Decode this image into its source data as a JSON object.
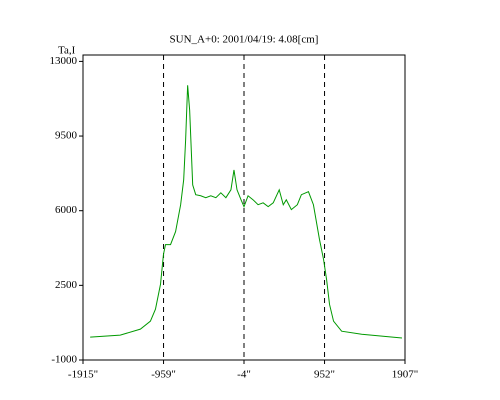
{
  "chart_data": {
    "type": "line",
    "title": "SUN_A+0: 2001/04/19: 4.08[cm]",
    "y_label": "Ta,I",
    "xlim": [
      -1915,
      1907
    ],
    "xticks": [
      {
        "value": -1915,
        "label": "-1915\""
      },
      {
        "value": -959,
        "label": "-959\""
      },
      {
        "value": -4,
        "label": "-4\""
      },
      {
        "value": 952,
        "label": "952\""
      },
      {
        "value": 1907,
        "label": "1907\""
      }
    ],
    "ylim": [
      -1000,
      13300
    ],
    "yticks": [
      13000,
      9500,
      6000,
      2500,
      -1000
    ],
    "dashed_x": true,
    "series": [
      {
        "color": "#009900",
        "x": [
          -1830,
          -1473,
          -1234,
          -1115,
          -1055,
          -995,
          -960,
          -936,
          -876,
          -816,
          -756,
          -720,
          -697,
          -673,
          -649,
          -613,
          -577,
          -518,
          -458,
          -398,
          -338,
          -279,
          -219,
          -159,
          -123,
          -87,
          -39,
          -4,
          44,
          104,
          163,
          223,
          283,
          343,
          414,
          462,
          498,
          558,
          629,
          677,
          761,
          820,
          892,
          940,
          976,
          1011,
          1059,
          1155,
          1393,
          1632,
          1871
        ],
        "values": [
          73,
          167,
          446,
          820,
          1380,
          2550,
          3950,
          4410,
          4410,
          5020,
          6280,
          7450,
          9310,
          11880,
          10710,
          7210,
          6750,
          6700,
          6610,
          6700,
          6610,
          6840,
          6610,
          6980,
          7910,
          6980,
          6510,
          6190,
          6700,
          6510,
          6280,
          6370,
          6190,
          6370,
          6980,
          6280,
          6510,
          6050,
          6280,
          6750,
          6890,
          6280,
          4650,
          3720,
          2780,
          1610,
          820,
          350,
          210,
          120,
          30
        ]
      }
    ]
  }
}
